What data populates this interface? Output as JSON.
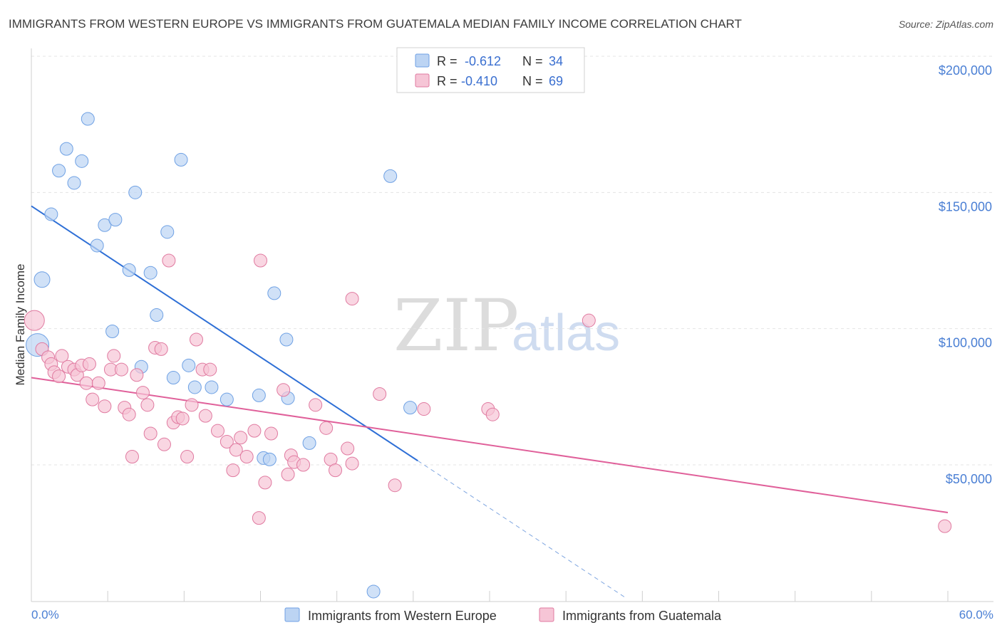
{
  "chart_data": {
    "type": "scatter",
    "title": "IMMIGRANTS FROM WESTERN EUROPE VS IMMIGRANTS FROM GUATEMALA MEDIAN FAMILY INCOME CORRELATION CHART",
    "source": "Source: ZipAtlas.com",
    "xlabel": "",
    "ylabel": "Median Family Income",
    "xlim": [
      0,
      60
    ],
    "ylim": [
      0,
      210000
    ],
    "x_tick_labels": [
      "0.0%",
      "60.0%"
    ],
    "y_ticks": [
      {
        "value": 50000,
        "label": "$50,000"
      },
      {
        "value": 100000,
        "label": "$100,000"
      },
      {
        "value": 150000,
        "label": "$150,000"
      },
      {
        "value": 200000,
        "label": "$200,000"
      }
    ],
    "watermark": {
      "zip": "ZIP",
      "atlas": "atlas"
    },
    "legend": {
      "r_label": "R =",
      "n_label": "N =",
      "entries": [
        {
          "r": "-0.612",
          "n": "34"
        },
        {
          "r": "-0.410",
          "n": "69"
        }
      ]
    },
    "series": [
      {
        "name": "Immigrants from Western Europe",
        "color": "#6fa1e4",
        "fill": "#bcd4f3",
        "trend": {
          "x": [
            0,
            25.3
          ],
          "y": [
            145000,
            51500
          ],
          "dash_to_x": 38.9
        },
        "points": [
          [
            0.4,
            94000,
            16
          ],
          [
            0.7,
            118000,
            11
          ],
          [
            1.3,
            142000,
            9
          ],
          [
            1.8,
            158000,
            9
          ],
          [
            2.3,
            166000,
            9
          ],
          [
            2.8,
            153500,
            9
          ],
          [
            3.3,
            161500,
            9
          ],
          [
            3.7,
            177000,
            9
          ],
          [
            4.3,
            130500,
            9
          ],
          [
            4.8,
            138000,
            9
          ],
          [
            5.5,
            140000,
            9
          ],
          [
            5.3,
            99000,
            9
          ],
          [
            6.4,
            121500,
            9
          ],
          [
            6.8,
            150000,
            9
          ],
          [
            7.2,
            86000,
            9
          ],
          [
            7.8,
            120500,
            9
          ],
          [
            8.2,
            105000,
            9
          ],
          [
            8.9,
            135500,
            9
          ],
          [
            9.3,
            82000,
            9
          ],
          [
            9.8,
            162000,
            9
          ],
          [
            10.3,
            86500,
            9
          ],
          [
            10.7,
            78500,
            9
          ],
          [
            11.8,
            78500,
            9
          ],
          [
            12.8,
            74000,
            9
          ],
          [
            14.9,
            75500,
            9
          ],
          [
            15.2,
            52500,
            9
          ],
          [
            15.6,
            52000,
            9
          ],
          [
            15.9,
            113000,
            9
          ],
          [
            16.7,
            96000,
            9
          ],
          [
            16.8,
            74500,
            9
          ],
          [
            18.2,
            58000,
            9
          ],
          [
            22.4,
            3500,
            9
          ],
          [
            23.5,
            156000,
            9
          ],
          [
            24.8,
            71000,
            9
          ]
        ]
      },
      {
        "name": "Immigrants from Guatemala",
        "color": "#e07aa0",
        "fill": "#f6c5d6",
        "trend": {
          "x": [
            0,
            60
          ],
          "y": [
            82000,
            32500
          ]
        },
        "points": [
          [
            0.2,
            103000,
            14
          ],
          [
            0.7,
            92500,
            9
          ],
          [
            1.1,
            89500,
            9
          ],
          [
            1.3,
            87000,
            9
          ],
          [
            1.5,
            84000,
            9
          ],
          [
            1.8,
            82500,
            9
          ],
          [
            2.0,
            90000,
            9
          ],
          [
            2.4,
            86000,
            9
          ],
          [
            2.8,
            85000,
            9
          ],
          [
            3.0,
            83000,
            9
          ],
          [
            3.3,
            86500,
            9
          ],
          [
            3.6,
            80000,
            9
          ],
          [
            3.8,
            87000,
            9
          ],
          [
            4.0,
            74000,
            9
          ],
          [
            4.4,
            80000,
            9
          ],
          [
            4.8,
            71500,
            9
          ],
          [
            5.2,
            85000,
            9
          ],
          [
            5.4,
            90000,
            9
          ],
          [
            5.9,
            85000,
            9
          ],
          [
            6.1,
            71000,
            9
          ],
          [
            6.4,
            68500,
            9
          ],
          [
            6.6,
            53000,
            9
          ],
          [
            6.9,
            83000,
            9
          ],
          [
            7.3,
            76500,
            9
          ],
          [
            7.6,
            72000,
            9
          ],
          [
            7.8,
            61500,
            9
          ],
          [
            8.1,
            93000,
            9
          ],
          [
            8.5,
            92500,
            9
          ],
          [
            8.7,
            57500,
            9
          ],
          [
            9.0,
            125000,
            9
          ],
          [
            9.3,
            65500,
            9
          ],
          [
            9.6,
            67500,
            9
          ],
          [
            9.9,
            67000,
            9
          ],
          [
            10.2,
            53000,
            9
          ],
          [
            10.5,
            72000,
            9
          ],
          [
            10.8,
            96000,
            9
          ],
          [
            11.2,
            85000,
            9
          ],
          [
            11.4,
            68000,
            9
          ],
          [
            11.7,
            85000,
            9
          ],
          [
            12.2,
            62500,
            9
          ],
          [
            12.8,
            58500,
            9
          ],
          [
            13.2,
            48000,
            9
          ],
          [
            13.4,
            55500,
            9
          ],
          [
            13.7,
            60000,
            9
          ],
          [
            14.1,
            53000,
            9
          ],
          [
            14.6,
            62500,
            9
          ],
          [
            14.9,
            30500,
            9
          ],
          [
            15.0,
            125000,
            9
          ],
          [
            15.3,
            43500,
            9
          ],
          [
            15.7,
            61500,
            9
          ],
          [
            16.5,
            77500,
            9
          ],
          [
            16.8,
            46500,
            9
          ],
          [
            17.0,
            53500,
            9
          ],
          [
            17.2,
            51000,
            9
          ],
          [
            17.8,
            50000,
            9
          ],
          [
            18.6,
            72000,
            9
          ],
          [
            19.3,
            63500,
            9
          ],
          [
            19.6,
            52000,
            9
          ],
          [
            19.9,
            48000,
            9
          ],
          [
            20.7,
            56000,
            9
          ],
          [
            21.0,
            50500,
            9
          ],
          [
            21.0,
            111000,
            9
          ],
          [
            22.8,
            76000,
            9
          ],
          [
            23.8,
            42500,
            9
          ],
          [
            25.7,
            70500,
            9
          ],
          [
            29.9,
            70500,
            9
          ],
          [
            30.2,
            68500,
            9
          ],
          [
            36.5,
            103000,
            9
          ],
          [
            59.8,
            27500,
            9
          ]
        ]
      }
    ]
  }
}
